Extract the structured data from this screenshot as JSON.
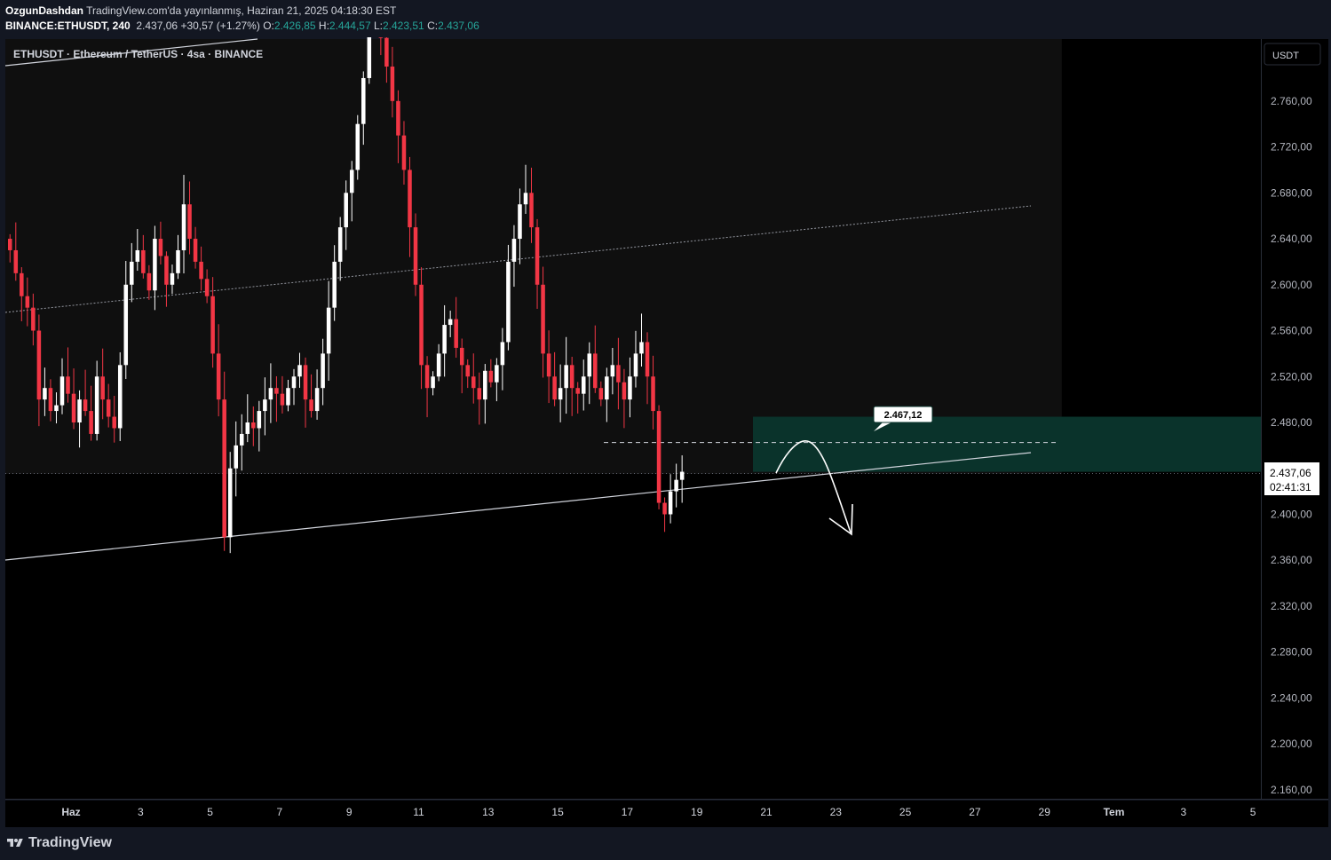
{
  "header": {
    "author": "OzgunDashdan",
    "published_text": "TradingView.com'da yayınlanmış, Haziran 21, 2025 04:18:30 EST",
    "symbol": "BINANCE:ETHUSDT, 240",
    "last": "2.437,06",
    "change": "+30,57 (+1.27%)",
    "open_label": "O:",
    "open": "2.426,85",
    "high_label": "H:",
    "high": "2.444,57",
    "low_label": "L:",
    "low": "2.423,51",
    "close_label": "C:",
    "close": "2.437,06"
  },
  "chart_title": "ETHUSDT · Ethereum / TetherUS · 4sa · BINANCE",
  "currency_label": "USDT",
  "price_badge": {
    "price": "2.437,06",
    "countdown": "02:41:31"
  },
  "annotation_label": "2.467,12",
  "footer": {
    "brand": "TradingView"
  },
  "colors": {
    "up": "#ffffff",
    "down": "#f23645",
    "zone": "#0a332b",
    "background": "#000000",
    "panel": "#0f0f0f"
  },
  "chart_data": {
    "type": "candlestick",
    "title": "ETHUSDT · Ethereum / TetherUS · 4sa · BINANCE",
    "ylim": [
      2140,
      2800
    ],
    "y_ticks": [
      "2.760,00",
      "2.720,00",
      "2.680,00",
      "2.640,00",
      "2.600,00",
      "2.560,00",
      "2.520,00",
      "2.480,00",
      "2.440,00",
      "2.400,00",
      "2.360,00",
      "2.320,00",
      "2.280,00",
      "2.240,00",
      "2.200,00",
      "2.160,00"
    ],
    "y_tick_values": [
      2760,
      2720,
      2680,
      2640,
      2600,
      2560,
      2520,
      2480,
      2440,
      2400,
      2360,
      2320,
      2280,
      2240,
      2200,
      2160
    ],
    "x_ticks": [
      {
        "label": "Haz",
        "bold": true,
        "day": 1
      },
      {
        "label": "3",
        "day": 3
      },
      {
        "label": "5",
        "day": 5
      },
      {
        "label": "7",
        "day": 7
      },
      {
        "label": "9",
        "day": 9
      },
      {
        "label": "11",
        "day": 11
      },
      {
        "label": "13",
        "day": 13
      },
      {
        "label": "15",
        "day": 15
      },
      {
        "label": "17",
        "day": 17
      },
      {
        "label": "19",
        "day": 19
      },
      {
        "label": "21",
        "day": 21
      },
      {
        "label": "23",
        "day": 23
      },
      {
        "label": "25",
        "day": 25
      },
      {
        "label": "27",
        "day": 27
      },
      {
        "label": "29",
        "day": 29
      },
      {
        "label": "Tem",
        "bold": true,
        "day": 31
      },
      {
        "label": "3",
        "day": 33
      },
      {
        "label": "5",
        "day": 35
      }
    ],
    "closes": [
      2630,
      2610,
      2590,
      2580,
      2560,
      2500,
      2510,
      2490,
      2495,
      2520,
      2505,
      2480,
      2500,
      2490,
      2470,
      2520,
      2500,
      2485,
      2475,
      2530,
      2600,
      2620,
      2630,
      2610,
      2595,
      2640,
      2625,
      2600,
      2610,
      2630,
      2670,
      2640,
      2620,
      2605,
      2590,
      2540,
      2500,
      2380,
      2440,
      2460,
      2470,
      2480,
      2475,
      2490,
      2500,
      2510,
      2505,
      2495,
      2510,
      2520,
      2530,
      2500,
      2490,
      2510,
      2540,
      2580,
      2620,
      2650,
      2680,
      2700,
      2740,
      2780,
      2830,
      2870,
      2815,
      2790,
      2760,
      2730,
      2700,
      2650,
      2600,
      2530,
      2510,
      2520,
      2540,
      2565,
      2570,
      2545,
      2530,
      2520,
      2510,
      2500,
      2525,
      2515,
      2530,
      2550,
      2620,
      2640,
      2670,
      2680,
      2650,
      2600,
      2540,
      2520,
      2500,
      2510,
      2530,
      2510,
      2505,
      2520,
      2540,
      2510,
      2500,
      2520,
      2530,
      2515,
      2500,
      2520,
      2540,
      2550,
      2520,
      2490,
      2410,
      2400,
      2420,
      2430,
      2437.06
    ],
    "extras": {
      "projection_level": 2467.12,
      "zone": [
        2437,
        2485
      ],
      "shaded_until_day": 29.5
    }
  }
}
